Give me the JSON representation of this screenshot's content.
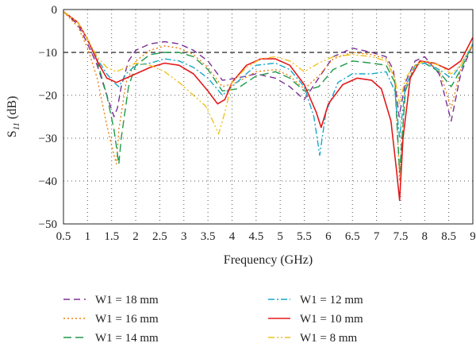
{
  "chart_data": {
    "type": "line",
    "xlabel": "Frequency (GHz)",
    "ylabel_main": "S",
    "ylabel_sub": "11",
    "ylabel_unit": "(dB)",
    "xlim": [
      0.5,
      9
    ],
    "ylim": [
      -50,
      0
    ],
    "xticks": [
      0.5,
      1,
      1.5,
      2,
      2.5,
      3,
      3.5,
      4,
      4.5,
      5,
      5.5,
      6,
      6.5,
      7,
      7.5,
      8,
      8.5,
      9
    ],
    "xtick_labels": [
      "0.5",
      "1",
      "1.5",
      "2",
      "2.5",
      "3",
      "3.5",
      "4",
      "4.5",
      "5",
      "5.5",
      "6",
      "6.5",
      "7",
      "7.5",
      "8",
      "8.5",
      "9"
    ],
    "yticks": [
      0,
      -10,
      -20,
      -30,
      -40,
      -50
    ],
    "ytick_labels": [
      "0",
      "−10",
      "−20",
      "−30",
      "−40",
      "−50"
    ],
    "grid": "dotted",
    "reference_line": {
      "y": -10,
      "style": "dashed",
      "color": "#222222"
    },
    "legend_position": "bottom",
    "series": [
      {
        "name": "W1 = 18 mm",
        "color": "#7b3294",
        "dash": "8,5",
        "x": [
          0.5,
          0.8,
          1.0,
          1.2,
          1.4,
          1.55,
          1.62,
          1.7,
          1.85,
          2.0,
          2.3,
          2.6,
          2.9,
          3.2,
          3.5,
          3.8,
          4.1,
          4.5,
          4.9,
          5.2,
          5.5,
          5.8,
          6.1,
          6.5,
          6.9,
          7.2,
          7.35,
          7.47,
          7.6,
          7.8,
          8.0,
          8.3,
          8.55,
          8.75,
          9.0
        ],
        "y": [
          -0.5,
          -3.5,
          -8,
          -13,
          -20,
          -25,
          -23,
          -18,
          -12,
          -9.5,
          -8,
          -7.5,
          -8,
          -9.5,
          -12,
          -16.5,
          -16,
          -15,
          -16,
          -18,
          -21,
          -16,
          -11,
          -9,
          -10,
          -11,
          -14,
          -25,
          -17,
          -12,
          -11,
          -15,
          -26,
          -15,
          -8
        ]
      },
      {
        "name": "W1 = 16 mm",
        "color": "#f07f09",
        "dash": "2,3",
        "x": [
          0.5,
          0.8,
          1.0,
          1.2,
          1.4,
          1.55,
          1.6,
          1.65,
          1.8,
          2.0,
          2.3,
          2.6,
          2.9,
          3.2,
          3.5,
          3.8,
          4.1,
          4.5,
          4.9,
          5.2,
          5.5,
          5.8,
          6.1,
          6.5,
          6.9,
          7.2,
          7.38,
          7.48,
          7.6,
          7.8,
          8.0,
          8.3,
          8.55,
          8.75,
          9.0
        ],
        "y": [
          -0.5,
          -4,
          -9,
          -16,
          -27,
          -34,
          -36,
          -28,
          -17,
          -12,
          -9.5,
          -8.5,
          -9,
          -10.5,
          -13.5,
          -18,
          -17,
          -14.5,
          -14,
          -15.5,
          -18.5,
          -15.5,
          -11.5,
          -10,
          -10.5,
          -11.5,
          -16,
          -40,
          -18,
          -13,
          -12,
          -14,
          -23,
          -14,
          -8
        ]
      },
      {
        "name": "W1 = 14 mm",
        "color": "#1d9a4a",
        "dash": "10,5",
        "x": [
          0.5,
          0.8,
          1.0,
          1.2,
          1.4,
          1.55,
          1.65,
          1.7,
          1.85,
          2.0,
          2.3,
          2.6,
          2.9,
          3.2,
          3.5,
          3.8,
          4.1,
          4.5,
          4.9,
          5.2,
          5.5,
          5.8,
          6.1,
          6.5,
          6.9,
          7.2,
          7.38,
          7.48,
          7.6,
          7.8,
          8.0,
          8.3,
          8.55,
          8.75,
          9.0
        ],
        "y": [
          -0.5,
          -3,
          -7,
          -12,
          -20,
          -28,
          -36,
          -30,
          -18,
          -13,
          -10.5,
          -10,
          -10,
          -11,
          -14,
          -19,
          -18.5,
          -15.5,
          -14.5,
          -16,
          -19,
          -18,
          -14,
          -12,
          -12.5,
          -13,
          -17,
          -38,
          -19,
          -13,
          -12.5,
          -14.5,
          -18,
          -14,
          -8
        ]
      },
      {
        "name": "W1 = 12 mm",
        "color": "#17a9c9",
        "dash": "8,3,2,3",
        "x": [
          0.5,
          0.8,
          1.0,
          1.2,
          1.4,
          1.55,
          1.65,
          1.8,
          2.0,
          2.3,
          2.6,
          2.9,
          3.2,
          3.5,
          3.8,
          4.1,
          4.5,
          4.9,
          5.2,
          5.5,
          5.7,
          5.82,
          5.95,
          6.2,
          6.5,
          6.9,
          7.2,
          7.38,
          7.48,
          7.6,
          7.8,
          8.0,
          8.3,
          8.55,
          8.75,
          9.0
        ],
        "y": [
          -0.5,
          -3,
          -7,
          -11.5,
          -15,
          -17,
          -18,
          -15,
          -13,
          -12.5,
          -11.5,
          -12,
          -13.5,
          -16,
          -20,
          -17,
          -13,
          -12.5,
          -14,
          -18,
          -25,
          -34,
          -24,
          -17,
          -15,
          -15,
          -14.5,
          -19,
          -30,
          -18,
          -13,
          -12.5,
          -14,
          -16,
          -13,
          -8
        ]
      },
      {
        "name": "W1 = 10 mm",
        "color": "#e31a1c",
        "dash": "",
        "x": [
          0.5,
          0.8,
          1.0,
          1.2,
          1.4,
          1.6,
          1.8,
          2.0,
          2.3,
          2.6,
          2.9,
          3.2,
          3.5,
          3.7,
          3.85,
          4.0,
          4.3,
          4.6,
          4.9,
          5.2,
          5.5,
          5.75,
          5.85,
          6.0,
          6.3,
          6.6,
          6.9,
          7.1,
          7.3,
          7.42,
          7.48,
          7.55,
          7.7,
          7.9,
          8.2,
          8.5,
          8.75,
          9.0
        ],
        "y": [
          -0.5,
          -3,
          -7,
          -12,
          -16,
          -17,
          -16,
          -15,
          -13.5,
          -12.5,
          -13,
          -15,
          -19,
          -22,
          -21,
          -17,
          -13,
          -11.5,
          -11.5,
          -13,
          -17.5,
          -24,
          -27.5,
          -22,
          -17.5,
          -16,
          -16.5,
          -18.5,
          -26,
          -38,
          -44.5,
          -30,
          -16,
          -12,
          -12.5,
          -14,
          -12,
          -6.5
        ]
      },
      {
        "name": "W1 = 8 mm",
        "color": "#f2c21b",
        "dash": "8,3,2,3,2,3",
        "x": [
          0.5,
          0.8,
          1.0,
          1.2,
          1.4,
          1.6,
          1.8,
          2.0,
          2.3,
          2.6,
          2.9,
          3.2,
          3.45,
          3.6,
          3.72,
          3.85,
          4.0,
          4.3,
          4.6,
          4.9,
          5.2,
          5.5,
          5.8,
          6.1,
          6.5,
          6.9,
          7.2,
          7.38,
          7.48,
          7.6,
          7.8,
          8.0,
          8.3,
          8.55,
          8.75,
          9.0
        ],
        "y": [
          -0.5,
          -3,
          -7,
          -11,
          -13.5,
          -14.5,
          -13.5,
          -12.5,
          -13,
          -14.5,
          -17,
          -20,
          -22.5,
          -26,
          -29,
          -24,
          -17,
          -13.5,
          -11.5,
          -11,
          -12,
          -14.5,
          -12.5,
          -11,
          -10.5,
          -11,
          -12,
          -16,
          -22,
          -16,
          -13,
          -12,
          -13,
          -15,
          -13,
          -8
        ]
      }
    ]
  }
}
